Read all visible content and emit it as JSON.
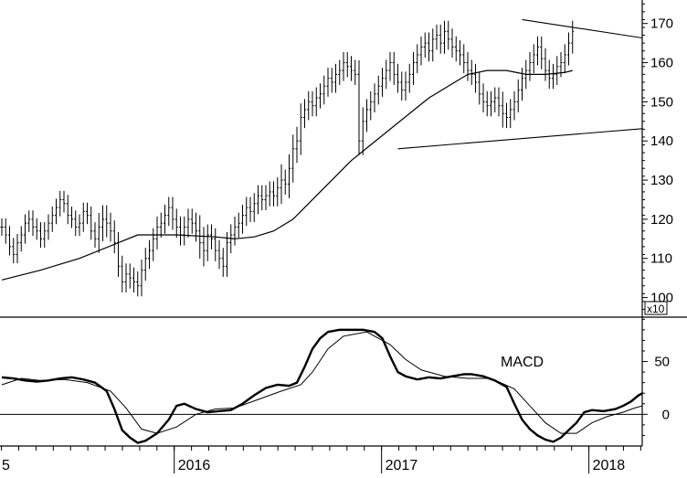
{
  "chart_data": [
    {
      "type": "ohlc",
      "ylim": [
        95,
        176
      ],
      "yticks": [
        100,
        110,
        120,
        130,
        140,
        150,
        160,
        170
      ],
      "y_multiplier_label": "x10",
      "x_tick_labels": [
        "5",
        "2016",
        "2017",
        "2018"
      ],
      "series": [
        {
          "kind": "bars",
          "start_week": 0,
          "closes": [
            118,
            116,
            113,
            111,
            114,
            116,
            119,
            120,
            118,
            117,
            115,
            117,
            119,
            121,
            123,
            125,
            124,
            121,
            120,
            118,
            119,
            122,
            121,
            117,
            115,
            118,
            120,
            119,
            117,
            114,
            108,
            104,
            106,
            105,
            104,
            103,
            107,
            110,
            112,
            115,
            118,
            119,
            121,
            123,
            120,
            118,
            116,
            118,
            120,
            119,
            117,
            114,
            112,
            116,
            115,
            112,
            110,
            108,
            114,
            116,
            118,
            119,
            121,
            123,
            122,
            124,
            126,
            125,
            126,
            127,
            126,
            128,
            130,
            129,
            133,
            138,
            140,
            146,
            148,
            150,
            149,
            151,
            152,
            154,
            156,
            155,
            157,
            158,
            160,
            159,
            158,
            157,
            140,
            145,
            148,
            150,
            152,
            154,
            156,
            158,
            160,
            157,
            155,
            153,
            155,
            157,
            160,
            162,
            164,
            165,
            163,
            166,
            167,
            165,
            168,
            166,
            164,
            163,
            162,
            160,
            158,
            157,
            155,
            152,
            150,
            149,
            150,
            151,
            149,
            147,
            146,
            148,
            150,
            153,
            156,
            158,
            160,
            162,
            164,
            161,
            158,
            156,
            157,
            159,
            160,
            162,
            165,
            168
          ],
          "ranges": [
            5,
            5,
            5,
            5,
            5,
            5,
            5,
            5,
            5,
            5,
            5,
            5,
            5,
            5,
            5,
            5,
            5,
            5,
            5,
            5,
            5,
            5,
            5,
            5,
            5,
            8,
            8,
            8,
            6,
            6,
            6,
            6,
            6,
            6,
            6,
            6,
            6,
            6,
            6,
            6,
            6,
            6,
            6,
            6,
            6,
            6,
            6,
            6,
            6,
            6,
            6,
            9,
            9,
            6,
            6,
            6,
            6,
            6,
            6,
            6,
            6,
            6,
            6,
            6,
            6,
            6,
            6,
            6,
            6,
            6,
            6,
            6,
            9,
            6,
            8,
            8,
            8,
            8,
            6,
            6,
            6,
            6,
            6,
            6,
            6,
            6,
            6,
            6,
            6,
            6,
            6,
            6,
            8,
            8,
            6,
            6,
            6,
            6,
            6,
            6,
            6,
            6,
            6,
            6,
            6,
            6,
            6,
            6,
            6,
            6,
            6,
            6,
            6,
            6,
            6,
            6,
            6,
            6,
            6,
            6,
            6,
            6,
            6,
            6,
            6,
            6,
            6,
            6,
            6,
            8,
            6,
            6,
            6,
            6,
            6,
            6,
            6,
            6,
            6,
            6,
            6,
            6,
            6,
            6,
            6,
            6,
            6,
            6
          ]
        },
        {
          "kind": "moving_average",
          "points": [
            [
              0,
              104.5
            ],
            [
              10,
              107
            ],
            [
              20,
              110
            ],
            [
              30,
              114
            ],
            [
              35,
              116
            ],
            [
              45,
              116
            ],
            [
              55,
              115.5
            ],
            [
              60,
              115
            ],
            [
              65,
              115.5
            ],
            [
              70,
              117
            ],
            [
              75,
              120
            ],
            [
              80,
              125
            ],
            [
              85,
              130
            ],
            [
              90,
              135
            ],
            [
              95,
              139
            ],
            [
              100,
              143
            ],
            [
              105,
              147
            ],
            [
              110,
              151
            ],
            [
              115,
              154
            ],
            [
              120,
              157
            ],
            [
              125,
              158
            ],
            [
              130,
              158
            ],
            [
              135,
              157
            ],
            [
              140,
              157
            ],
            [
              145,
              157.5
            ],
            [
              147,
              158
            ]
          ]
        }
      ],
      "trendlines": [
        {
          "from": [
            134,
            171
          ],
          "to": [
            200,
            161
          ]
        },
        {
          "from": [
            102,
            138
          ],
          "to": [
            200,
            146
          ]
        }
      ]
    },
    {
      "type": "line",
      "title": "MACD",
      "ylim": [
        -30,
        92
      ],
      "yticks": [
        0,
        50
      ],
      "zero_line": true,
      "series": [
        {
          "kind": "macd",
          "points": [
            [
              0,
              35
            ],
            [
              3,
              34
            ],
            [
              6,
              32
            ],
            [
              9,
              31
            ],
            [
              12,
              32
            ],
            [
              15,
              34
            ],
            [
              18,
              35
            ],
            [
              21,
              33
            ],
            [
              24,
              30
            ],
            [
              27,
              22
            ],
            [
              29,
              5
            ],
            [
              31,
              -15
            ],
            [
              33,
              -22
            ],
            [
              35,
              -27
            ],
            [
              37,
              -25
            ],
            [
              40,
              -18
            ],
            [
              43,
              -5
            ],
            [
              45,
              8
            ],
            [
              47,
              10
            ],
            [
              50,
              5
            ],
            [
              53,
              2
            ],
            [
              56,
              3
            ],
            [
              59,
              4
            ],
            [
              62,
              10
            ],
            [
              65,
              18
            ],
            [
              68,
              25
            ],
            [
              71,
              28
            ],
            [
              74,
              27
            ],
            [
              76,
              30
            ],
            [
              78,
              45
            ],
            [
              80,
              62
            ],
            [
              82,
              72
            ],
            [
              84,
              78
            ],
            [
              87,
              80
            ],
            [
              90,
              80
            ],
            [
              93,
              80
            ],
            [
              96,
              78
            ],
            [
              98,
              72
            ],
            [
              100,
              55
            ],
            [
              102,
              40
            ],
            [
              104,
              36
            ],
            [
              107,
              33
            ],
            [
              110,
              35
            ],
            [
              113,
              34
            ],
            [
              116,
              36
            ],
            [
              119,
              38
            ],
            [
              121,
              38
            ],
            [
              124,
              36
            ],
            [
              127,
              32
            ],
            [
              130,
              26
            ],
            [
              132,
              10
            ],
            [
              134,
              -5
            ],
            [
              136,
              -14
            ],
            [
              138,
              -20
            ],
            [
              140,
              -24
            ],
            [
              142,
              -26
            ],
            [
              144,
              -22
            ],
            [
              146,
              -15
            ],
            [
              148,
              -8
            ],
            [
              150,
              2
            ],
            [
              152,
              4
            ],
            [
              155,
              3
            ],
            [
              158,
              5
            ],
            [
              160,
              8
            ],
            [
              162,
              12
            ],
            [
              164,
              18
            ],
            [
              165,
              20
            ]
          ]
        },
        {
          "kind": "signal",
          "points": [
            [
              0,
              28
            ],
            [
              5,
              34
            ],
            [
              10,
              32
            ],
            [
              16,
              33
            ],
            [
              22,
              30
            ],
            [
              28,
              22
            ],
            [
              32,
              6
            ],
            [
              36,
              -14
            ],
            [
              40,
              -18
            ],
            [
              45,
              -12
            ],
            [
              50,
              0
            ],
            [
              55,
              5
            ],
            [
              60,
              6
            ],
            [
              66,
              14
            ],
            [
              72,
              22
            ],
            [
              77,
              28
            ],
            [
              80,
              40
            ],
            [
              84,
              62
            ],
            [
              88,
              74
            ],
            [
              94,
              78
            ],
            [
              100,
              66
            ],
            [
              104,
              52
            ],
            [
              108,
              42
            ],
            [
              114,
              36
            ],
            [
              120,
              34
            ],
            [
              126,
              34
            ],
            [
              132,
              24
            ],
            [
              136,
              8
            ],
            [
              140,
              -8
            ],
            [
              144,
              -18
            ],
            [
              148,
              -18
            ],
            [
              152,
              -8
            ],
            [
              156,
              -2
            ],
            [
              160,
              2
            ],
            [
              163,
              6
            ],
            [
              165,
              8
            ]
          ]
        }
      ]
    }
  ]
}
